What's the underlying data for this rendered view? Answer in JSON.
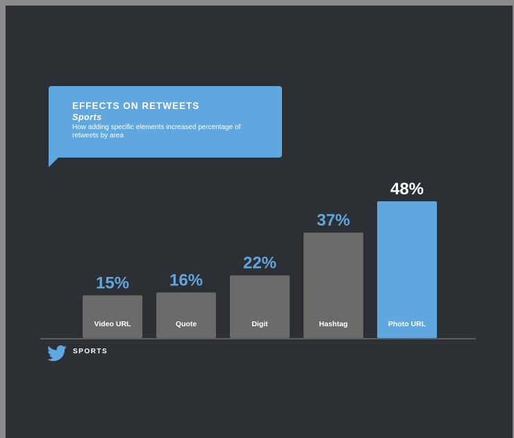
{
  "header": {
    "title": "EFFECTS ON RETWEETS",
    "subtitle": "Sports",
    "description": "How adding specific elements increased percentage of retweets by area"
  },
  "footer": {
    "label": "SPORTS",
    "logo_icon": "twitter-bird-icon"
  },
  "colors": {
    "background": "#2c2f33",
    "bar": "#6b6b6b",
    "highlight_bar": "#5fa7de",
    "value_label": "#5fa7de",
    "highlight_value_label": "#ffffff"
  },
  "chart_data": {
    "type": "bar",
    "categories": [
      "Video URL",
      "Quote",
      "Digit",
      "Hashtag",
      "Photo URL"
    ],
    "values": [
      15,
      16,
      22,
      37,
      48
    ],
    "value_labels": [
      "15%",
      "16%",
      "22%",
      "37%",
      "48%"
    ],
    "highlight_index": 4,
    "ylim": [
      0,
      48
    ],
    "grid": false
  }
}
